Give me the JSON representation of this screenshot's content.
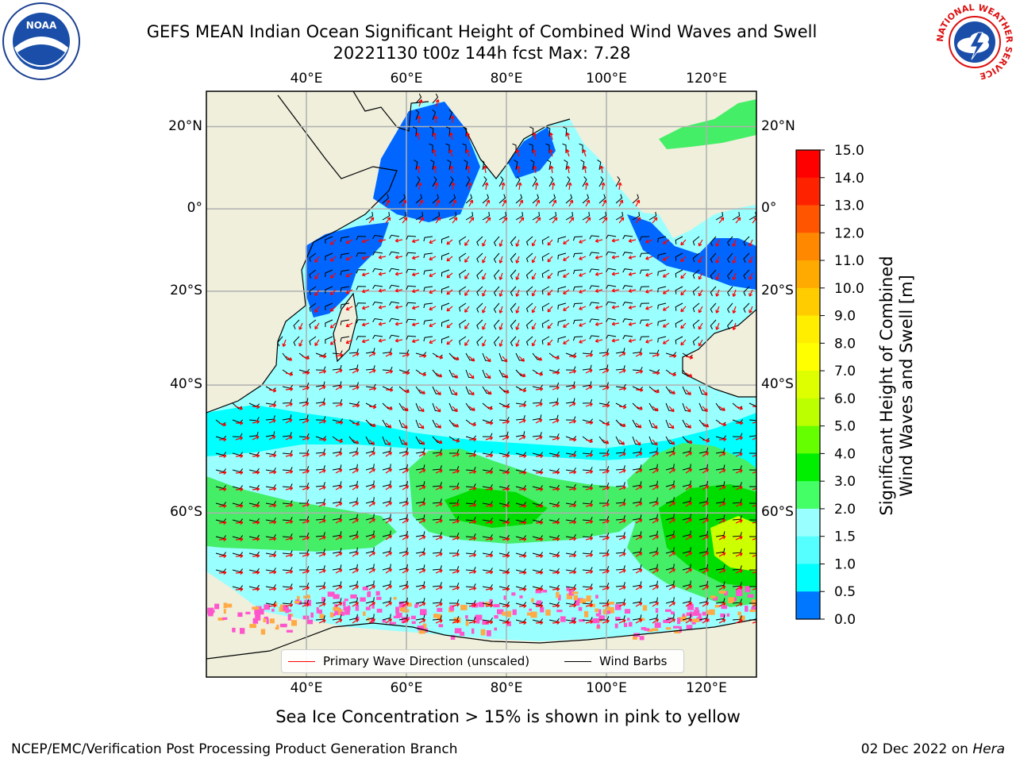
{
  "title": {
    "line1": "GEFS MEAN Indian Ocean Significant Height of Combined Wind Waves and Swell",
    "line2": "20221130 t00z 144h fcst   Max: 7.28"
  },
  "map": {
    "lon_range": [
      20,
      130
    ],
    "lat_range": [
      -88,
      28
    ],
    "lon_ticks": [
      "40°E",
      "60°E",
      "80°E",
      "100°E",
      "120°E"
    ],
    "lon_tick_values": [
      40,
      60,
      80,
      100,
      120
    ],
    "lat_ticks": [
      "20°N",
      "0°",
      "20°S",
      "40°S",
      "60°S"
    ],
    "lat_tick_values": [
      20,
      0,
      -20,
      -40,
      -60
    ],
    "colors": {
      "land": "#efefdc",
      "ocean_low": "#99ffff",
      "ocean_mid": "#00ffff",
      "ocean_coast": "#0066ff",
      "storm": "#44ee66",
      "storm_core": "#00dd00",
      "peak": "#ccff00",
      "wave_arrow": "#ff0000",
      "barb": "#000000",
      "ice_pink": "#ff55cc",
      "ice_orange": "#ffaa44"
    }
  },
  "legend": {
    "wave_direction": "Primary Wave Direction (unscaled)",
    "wind_barbs": "Wind Barbs"
  },
  "colorbar": {
    "label_line1": "Significant Height of Combined",
    "label_line2": "Wind Waves and Swell [m]",
    "ticks": [
      "15.0",
      "14.0",
      "13.0",
      "12.0",
      "11.0",
      "10.0",
      "9.0",
      "8.0",
      "7.0",
      "6.0",
      "5.0",
      "4.0",
      "3.0",
      "2.0",
      "1.5",
      "1.0",
      "0.5",
      "0.0"
    ],
    "colors": [
      "#ff0000",
      "#ff2200",
      "#ff5500",
      "#ff8800",
      "#ffaa00",
      "#ffcc00",
      "#ffee00",
      "#ffff00",
      "#ddff00",
      "#bbff00",
      "#66ff00",
      "#00ee00",
      "#44ff66",
      "#99ffff",
      "#55ffff",
      "#00ffff",
      "#0077ff",
      "#0000ff"
    ]
  },
  "sea_ice_note": "Sea Ice Concentration > 15% is shown in pink to yellow",
  "footer": {
    "left": "NCEP/EMC/Verification Post Processing Product Generation Branch",
    "date": "02 Dec 2022 on ",
    "host": "Hera"
  },
  "logos": {
    "noaa": "NOAA",
    "nws_ring": "NATIONAL WEATHER SERVICE"
  }
}
